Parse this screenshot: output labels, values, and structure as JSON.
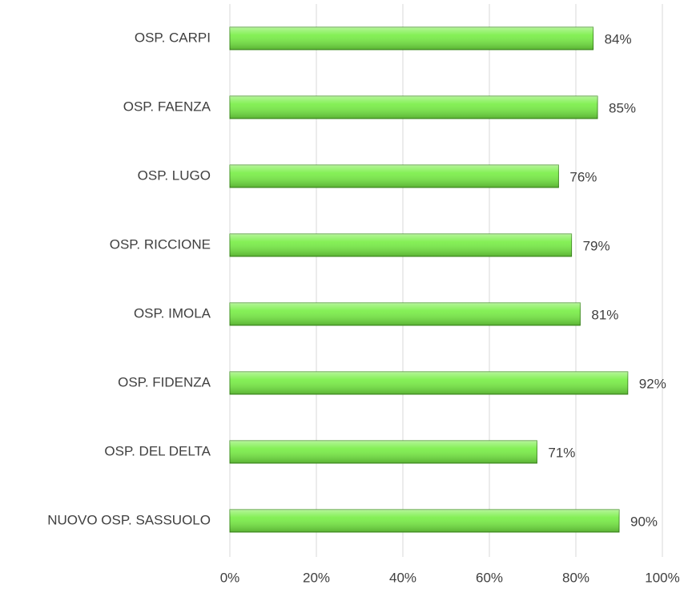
{
  "chart_data": {
    "type": "bar",
    "orientation": "horizontal",
    "categories": [
      "OSP. CARPI",
      "OSP. FAENZA",
      "OSP. LUGO",
      "OSP. RICCIONE",
      "OSP. IMOLA",
      "OSP. FIDENZA",
      "OSP. DEL DELTA",
      "NUOVO OSP. SASSUOLO"
    ],
    "values": [
      84,
      85,
      76,
      79,
      81,
      92,
      71,
      90
    ],
    "value_labels": [
      "84%",
      "85%",
      "76%",
      "79%",
      "81%",
      "92%",
      "71%",
      "90%"
    ],
    "color": "#77ee44",
    "xlim": [
      0,
      100
    ],
    "xticks": [
      {
        "value": 0,
        "label": "0%"
      },
      {
        "value": 20,
        "label": "20%"
      },
      {
        "value": 40,
        "label": "40%"
      },
      {
        "value": 60,
        "label": "60%"
      },
      {
        "value": 80,
        "label": "80%"
      },
      {
        "value": 100,
        "label": "100%"
      }
    ],
    "grid": true
  }
}
